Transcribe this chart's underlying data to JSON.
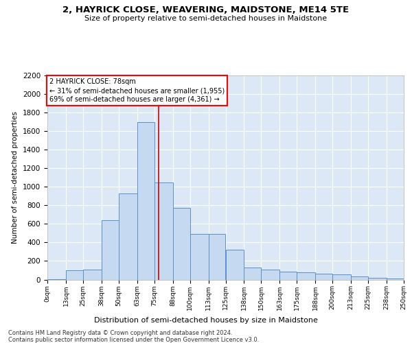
{
  "title1": "2, HAYRICK CLOSE, WEAVERING, MAIDSTONE, ME14 5TE",
  "title2": "Size of property relative to semi-detached houses in Maidstone",
  "xlabel": "Distribution of semi-detached houses by size in Maidstone",
  "ylabel": "Number of semi-detached properties",
  "footnote1": "Contains HM Land Registry data © Crown copyright and database right 2024.",
  "footnote2": "Contains public sector information licensed under the Open Government Licence v3.0.",
  "annotation_title": "2 HAYRICK CLOSE: 78sqm",
  "annotation_line1": "← 31% of semi-detached houses are smaller (1,955)",
  "annotation_line2": "69% of semi-detached houses are larger (4,361) →",
  "bin_edges": [
    0,
    13,
    25,
    38,
    50,
    63,
    75,
    88,
    100,
    113,
    125,
    138,
    150,
    163,
    175,
    188,
    200,
    213,
    225,
    238,
    250
  ],
  "bin_labels": [
    "0sqm",
    "13sqm",
    "25sqm",
    "38sqm",
    "50sqm",
    "63sqm",
    "75sqm",
    "88sqm",
    "100sqm",
    "113sqm",
    "125sqm",
    "138sqm",
    "150sqm",
    "163sqm",
    "175sqm",
    "188sqm",
    "200sqm",
    "213sqm",
    "225sqm",
    "238sqm",
    "250sqm"
  ],
  "counts": [
    5,
    100,
    110,
    640,
    930,
    1700,
    1050,
    770,
    490,
    490,
    320,
    130,
    110,
    85,
    75,
    60,
    55,
    30,
    20,
    10
  ],
  "bar_color": "#c5d9f0",
  "bar_edge_color": "#5b8fc9",
  "vline_x": 78,
  "vline_color": "#cc0000",
  "background_color": "#dce8f5",
  "ylim_max": 2200,
  "yticks": [
    0,
    200,
    400,
    600,
    800,
    1000,
    1200,
    1400,
    1600,
    1800,
    2000,
    2200
  ]
}
